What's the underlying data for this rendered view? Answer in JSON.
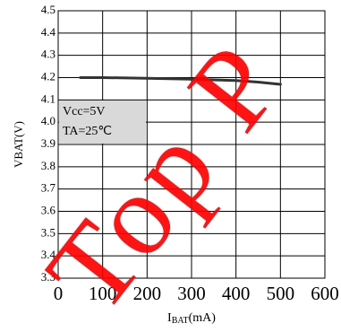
{
  "chart_data": {
    "type": "line",
    "x_label": [
      "I",
      "BAT",
      "(mA)"
    ],
    "y_label": "VBAT(V)",
    "annotations": [
      "Vcc=5V",
      "TA=25℃"
    ],
    "x": [
      50,
      100,
      200,
      300,
      400,
      450,
      500
    ],
    "series": [
      {
        "name": null,
        "color": "#333333",
        "values": [
          4.2,
          4.2,
          4.197,
          4.193,
          4.187,
          4.18,
          4.17
        ]
      }
    ],
    "xlim": [
      0,
      600
    ],
    "xticks": [
      0,
      100,
      200,
      300,
      400,
      500,
      600
    ],
    "ylim": [
      3.3,
      4.5
    ],
    "yticks": [
      3.3,
      3.4,
      3.5,
      3.6,
      3.7,
      3.8,
      3.9,
      {
        "value": 4,
        "label": "4.0"
      },
      4.1,
      4.2,
      4.3,
      4.4,
      4.5
    ],
    "grid": true
  },
  "watermark": "Top P"
}
